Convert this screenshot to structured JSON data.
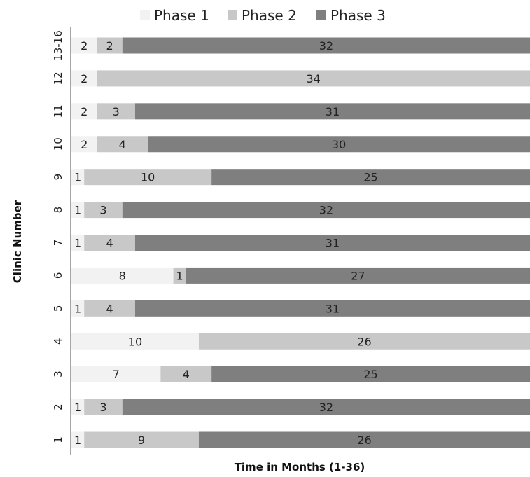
{
  "chart_data": {
    "type": "bar",
    "orientation": "horizontal",
    "stacked": true,
    "xlabel": "Time in Months (1-36)",
    "ylabel": "Clinic Number",
    "xlim": [
      0,
      36
    ],
    "grid": false,
    "legend_position": "top",
    "categories": [
      "1",
      "2",
      "3",
      "4",
      "5",
      "6",
      "7",
      "8",
      "9",
      "10",
      "11",
      "12",
      "13-16"
    ],
    "series": [
      {
        "name": "Phase 1",
        "color": "#f2f2f2",
        "values": [
          1,
          1,
          7,
          10,
          1,
          8,
          1,
          1,
          1,
          2,
          2,
          2,
          2
        ]
      },
      {
        "name": "Phase 2",
        "color": "#c8c8c8",
        "values": [
          9,
          3,
          4,
          26,
          4,
          1,
          4,
          3,
          10,
          4,
          3,
          34,
          2
        ]
      },
      {
        "name": "Phase 3",
        "color": "#7f7f7f",
        "values": [
          26,
          32,
          25,
          0,
          31,
          27,
          31,
          32,
          25,
          30,
          31,
          0,
          32
        ]
      }
    ]
  }
}
